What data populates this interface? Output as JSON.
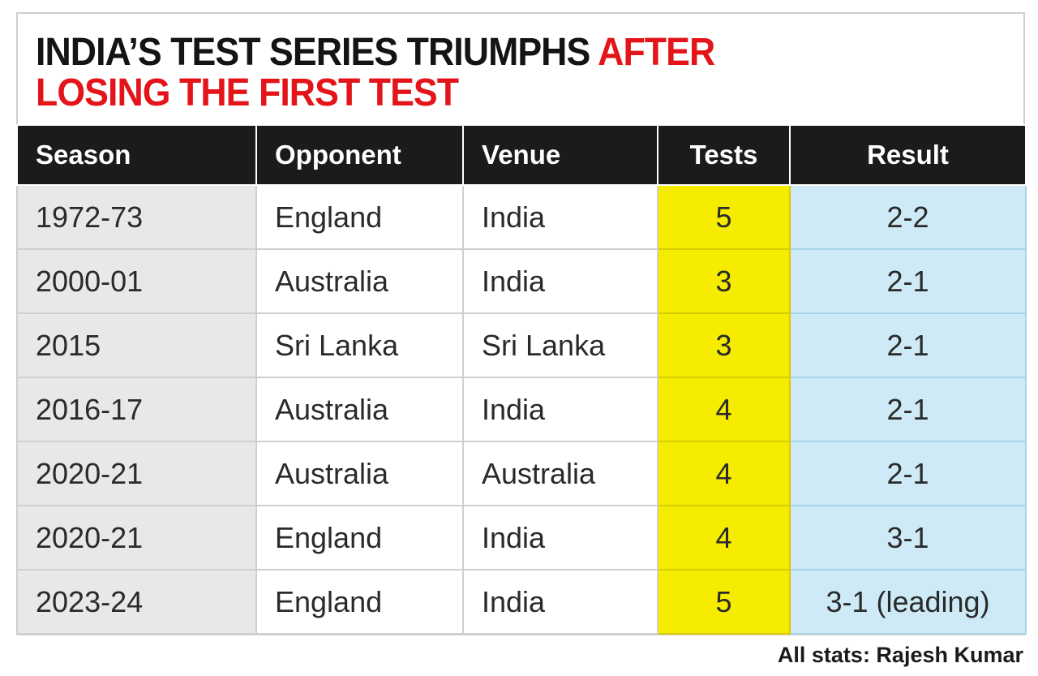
{
  "title": {
    "part1": "INDIA’S TEST SERIES TRIUMPHS ",
    "part2": "AFTER",
    "part3": "LOSING THE FIRST TEST"
  },
  "colors": {
    "title": "#141414",
    "accent": "#e3151a",
    "header_bg": "#1b1b1b",
    "tests_bg": "#f5ec00",
    "result_bg": "#cdeaf6",
    "season_bg": "#e8e8e6"
  },
  "chart_data": {
    "type": "table",
    "columns": [
      "Season",
      "Opponent",
      "Venue",
      "Tests",
      "Result"
    ],
    "rows": [
      [
        "1972-73",
        "England",
        "India",
        "5",
        "2-2"
      ],
      [
        "2000-01",
        "Australia",
        "India",
        "3",
        "2-1"
      ],
      [
        "2015",
        "Sri Lanka",
        "Sri Lanka",
        "3",
        "2-1"
      ],
      [
        "2016-17",
        "Australia",
        "India",
        "4",
        "2-1"
      ],
      [
        "2020-21",
        "Australia",
        "Australia",
        "4",
        "2-1"
      ],
      [
        "2020-21",
        "England",
        "India",
        "4",
        "3-1"
      ],
      [
        "2023-24",
        "England",
        "India",
        "5",
        "3-1 (leading)"
      ]
    ]
  },
  "source": "All stats: Rajesh Kumar"
}
